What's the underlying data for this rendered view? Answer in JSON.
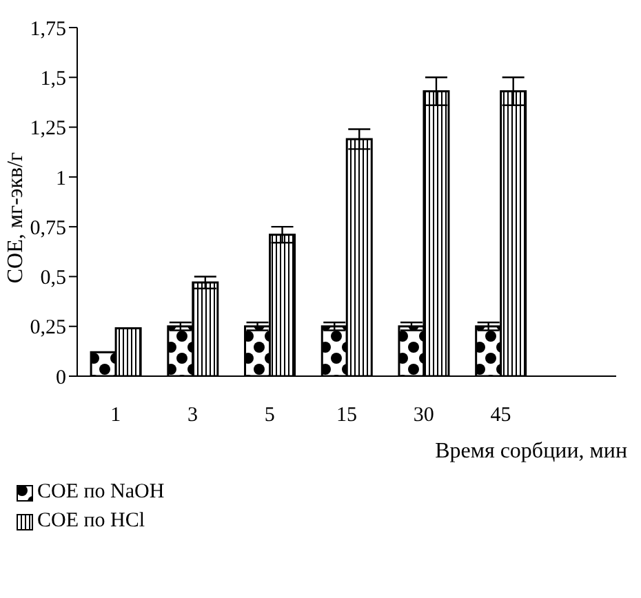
{
  "chart_data": {
    "type": "bar",
    "ylabel": "СОЕ, мг-экв/г",
    "xlabel": "Время сорбции, мин",
    "categories": [
      "1",
      "3",
      "5",
      "15",
      "30",
      "45",
      null
    ],
    "series": [
      {
        "name": "СОЕ по NaOH",
        "color": "#000000",
        "values": [
          0.12,
          0.25,
          0.25,
          0.25,
          0.25,
          0.25,
          null
        ],
        "errors": [
          null,
          0.02,
          0.02,
          0.02,
          0.02,
          0.02,
          null
        ]
      },
      {
        "name": "СОЕ по HCl",
        "color": "#000000",
        "values": [
          0.24,
          0.47,
          0.71,
          1.19,
          1.43,
          1.43,
          null
        ],
        "errors": [
          null,
          0.03,
          0.04,
          0.05,
          0.07,
          0.07,
          null
        ]
      }
    ],
    "ylim": [
      0,
      1.75
    ],
    "yticks": [
      0,
      {
        "value": 0.25,
        "label": "0,25"
      },
      {
        "value": 0.5,
        "label": "0,5"
      },
      {
        "value": 0.75,
        "label": "0,75"
      },
      1,
      {
        "value": 1.25,
        "label": "1,25"
      },
      {
        "value": 1.5,
        "label": "1,5"
      },
      {
        "value": 1.75,
        "label": "1,75"
      }
    ],
    "grid": false,
    "legend": "bottom left"
  }
}
